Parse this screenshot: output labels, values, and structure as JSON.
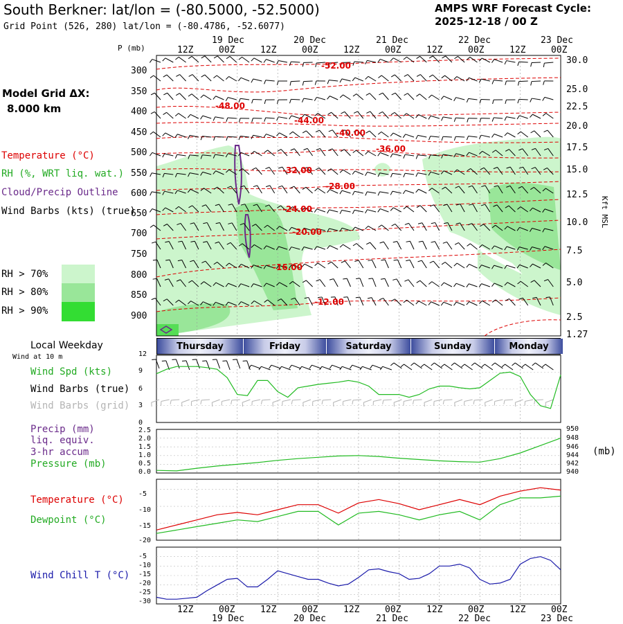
{
  "header": {
    "title": "South Berkner:  lat/lon = (-80.5000, -52.5000)",
    "grid_point": "Grid Point (526, 280) lat/lon = (-80.4786, -52.6077)",
    "cycle_label": "AMPS WRF Forecast Cycle:",
    "cycle_value": "2025-12-18 / 00  Z"
  },
  "left_legend": {
    "model_grid": "Model Grid ΔX:",
    "model_grid_value": "8.000 km",
    "temperature": "Temperature (°C)",
    "rh": "RH (%, WRT liq. wat.)",
    "cloud": "Cloud/Precip Outline",
    "wind_barbs": "Wind Barbs (kts) (true)",
    "rh70": "RH > 70%",
    "rh80": "RH > 80%",
    "rh90": "RH > 90%",
    "local_weekday": "Local Weekday",
    "wind_at": "Wind at 10 m",
    "wind_spd": "Wind Spd (kts)",
    "wind_barbs_true": "Wind Barbs (true)",
    "wind_barbs_grid": "Wind Barbs (grid)",
    "precip": "Precip (mm)",
    "liq_equiv": "liq. equiv.",
    "accum": "3-hr accum",
    "pressure": "Pressure (mb)",
    "temp2": "Temperature (°C)",
    "dewpoint": "Dewpoint (°C)",
    "wind_chill": "Wind Chill T (°C)"
  },
  "colors": {
    "temperature": "#dd0000",
    "rh": "#22bb22",
    "cloud": "#6a2a8a",
    "wind_chill": "#1a1aaa",
    "rh70": "#ccf5cc",
    "rh80": "#99e699",
    "rh90": "#33dd33",
    "grid_barbs": "#b4b4b4"
  },
  "time_axis": {
    "top_labels": [
      "12Z",
      "00Z",
      "12Z",
      "00Z",
      "12Z",
      "00Z",
      "12Z",
      "00Z",
      "12Z",
      "00Z"
    ],
    "top_dates": [
      "19 Dec",
      "20 Dec",
      "21 Dec",
      "22 Dec",
      "23 Dec"
    ],
    "bottom_labels": [
      "12Z",
      "00Z",
      "12Z",
      "00Z",
      "12Z",
      "00Z",
      "12Z",
      "00Z",
      "12Z",
      "00Z"
    ],
    "bottom_dates": [
      "19 Dec",
      "20 Dec",
      "21 Dec",
      "22 Dec",
      "23 Dec"
    ],
    "p_axis_label": "P (mb)",
    "right_axis_label": "Kft MSL"
  },
  "weekdays": [
    "Thursday",
    "Friday",
    "Saturday",
    "Sunday",
    "Monday"
  ],
  "chart_data": [
    {
      "type": "contour",
      "name": "cross-section",
      "ylabel": "P (mb)",
      "pressure_ticks": [
        300,
        350,
        400,
        450,
        500,
        550,
        600,
        650,
        700,
        750,
        800,
        850,
        900
      ],
      "height_ticks_kft": [
        "30.0",
        "25.0",
        "22.5",
        "20.0",
        "17.5",
        "15.0",
        "12.5",
        "10.0",
        "7.5",
        "5.0",
        "2.5",
        "1.27"
      ],
      "temperature_contour_labels": [
        "-52.00",
        "-48.00",
        "-44.00",
        "-40.00",
        "-36.00",
        "-32.00",
        "-28.00",
        "-24.00",
        "-20.00",
        "-16.00",
        "-12.00"
      ],
      "hours_range": [
        0,
        120
      ]
    },
    {
      "type": "line",
      "name": "wind-speed",
      "ylabel": "Wind Spd (kts)",
      "ylim": [
        0,
        12
      ],
      "yticks": [
        0,
        3,
        6,
        9,
        12
      ],
      "hours": [
        0,
        3,
        6,
        9,
        12,
        15,
        18,
        21,
        24,
        27,
        30,
        33,
        36,
        39,
        42,
        45,
        48,
        51,
        54,
        57,
        60,
        63,
        66,
        69,
        72,
        75,
        78,
        81,
        84,
        87,
        90,
        93,
        96,
        99,
        102,
        105,
        108,
        111,
        114,
        117,
        120
      ],
      "values": [
        8.7,
        9.5,
        10,
        10,
        10,
        9.8,
        9.5,
        8,
        5,
        4.8,
        7.5,
        7.5,
        5.5,
        4.5,
        6.2,
        6.5,
        6.8,
        7,
        7.2,
        7.5,
        7.2,
        6.5,
        5,
        5,
        5,
        4.5,
        5,
        6,
        6.5,
        6.5,
        6.2,
        6,
        6.2,
        7.5,
        8.8,
        9,
        8.2,
        5,
        3,
        2.5,
        8.5
      ]
    },
    {
      "type": "line",
      "name": "pressure",
      "ylabel": "Pressure (mb)",
      "precip_ylim": [
        0.0,
        2.5
      ],
      "precip_yticks": [
        "0.0",
        "0.5",
        "1.0",
        "1.5",
        "2.0",
        "2.5"
      ],
      "pressure_ylim": [
        940,
        950
      ],
      "pressure_yticks": [
        "940",
        "942",
        "944",
        "946",
        "948",
        "950"
      ],
      "hours": [
        0,
        6,
        12,
        18,
        24,
        30,
        36,
        42,
        48,
        54,
        60,
        66,
        72,
        78,
        84,
        90,
        96,
        102,
        108,
        114,
        120
      ],
      "values": [
        940.6,
        940.5,
        941.1,
        941.6,
        942,
        942.4,
        942.9,
        943.3,
        943.6,
        943.9,
        944,
        943.8,
        943.4,
        943.1,
        942.8,
        942.6,
        942.5,
        943.3,
        944.6,
        946.3,
        948
      ]
    },
    {
      "type": "line",
      "name": "temperature-dewpoint",
      "ylim": [
        -20,
        -2
      ],
      "yticks": [
        -5,
        -10,
        -15,
        -20
      ],
      "hours": [
        0,
        6,
        12,
        18,
        24,
        30,
        36,
        42,
        48,
        54,
        60,
        66,
        72,
        78,
        84,
        90,
        96,
        102,
        108,
        114,
        120
      ],
      "series": [
        {
          "name": "Temperature (°C)",
          "values": [
            -17,
            -15.5,
            -14,
            -12.5,
            -11.8,
            -12.5,
            -11,
            -9.5,
            -9.5,
            -12,
            -9,
            -8,
            -9.2,
            -11,
            -9.5,
            -8,
            -9.5,
            -7,
            -5.5,
            -4.5,
            -5.2
          ]
        },
        {
          "name": "Dewpoint (°C)",
          "values": [
            -18,
            -17,
            -16,
            -15,
            -14,
            -14.5,
            -13,
            -11.5,
            -11.5,
            -15.5,
            -12,
            -11.5,
            -12.5,
            -14,
            -12.5,
            -11.5,
            -14,
            -9.5,
            -7.5,
            -7.5,
            -7
          ]
        }
      ]
    },
    {
      "type": "line",
      "name": "wind-chill",
      "ylabel": "Wind Chill T (°C)",
      "ylim": [
        -30,
        0
      ],
      "yticks": [
        -5,
        -10,
        -15,
        -20,
        -25,
        -30
      ],
      "hours": [
        0,
        3,
        6,
        9,
        12,
        15,
        18,
        21,
        24,
        27,
        30,
        33,
        36,
        39,
        42,
        45,
        48,
        51,
        54,
        57,
        60,
        63,
        66,
        69,
        72,
        75,
        78,
        81,
        84,
        87,
        90,
        93,
        96,
        99,
        102,
        105,
        108,
        111,
        114,
        117,
        120
      ],
      "values": [
        -26.5,
        -27.5,
        -27.5,
        -27,
        -26.5,
        -23,
        -20,
        -17,
        -16.5,
        -21,
        -21,
        -17,
        -12.5,
        -14,
        -15.5,
        -17,
        -17,
        -19,
        -20.5,
        -19.5,
        -16,
        -12,
        -11.5,
        -13,
        -14,
        -17,
        -16.5,
        -14,
        -10,
        -10,
        -9,
        -11,
        -17,
        -19.5,
        -19,
        -17,
        -9,
        -6,
        -5,
        -7,
        -12
      ]
    }
  ]
}
